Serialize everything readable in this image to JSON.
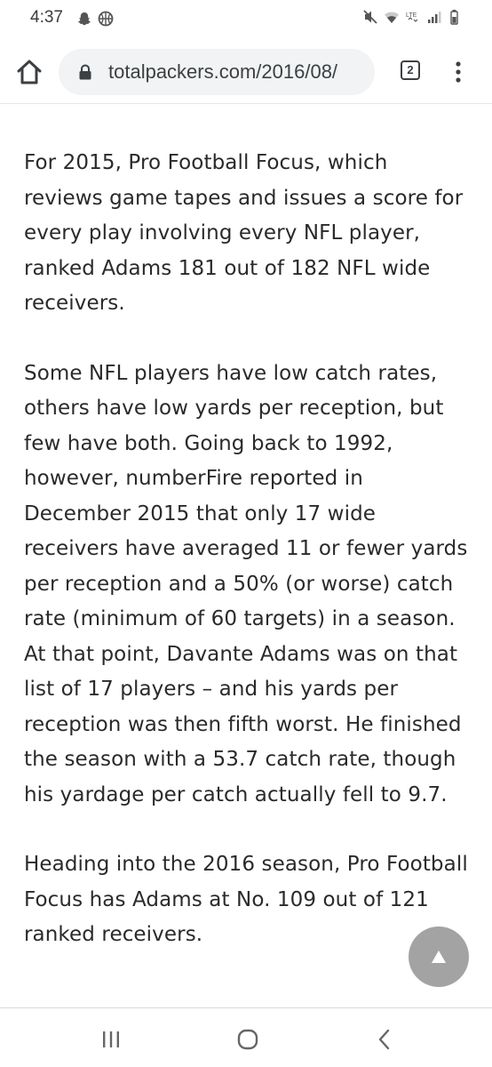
{
  "status_bar": {
    "time": "4:37",
    "left_icons": [
      "snapchat-icon",
      "basketball-icon"
    ],
    "right_icons": [
      "mute-icon",
      "wifi-icon",
      "lte-icon",
      "signal-icon",
      "battery-icon"
    ]
  },
  "browser": {
    "url": "totalpackers.com/2016/08/",
    "tab_count": "2"
  },
  "article": {
    "paragraphs": [
      "For 2015, Pro Football Focus, which reviews game tapes and issues a score for every play involving every NFL player, ranked Adams 181 out of 182 NFL wide receivers.",
      "Some NFL players have low catch rates, others have low yards per reception, but few have both. Going back to 1992, however, numberFire reported in December 2015 that only 17 wide receivers have averaged 11 or fewer yards per reception and a 50% (or worse) catch rate (minimum of 60 targets) in a season. At that point, Davante Adams was on that list of 17 players – and his yards per reception was then fifth worst. He finished the season with a 53.7 catch rate, though his yardage per catch actually fell to 9.7.",
      "Heading into the 2016 season, Pro Football Focus has Adams at No. 109 out of 121 ranked receivers."
    ]
  },
  "nav_bar": {
    "buttons": [
      "recents-icon",
      "home-circle-icon",
      "back-icon"
    ]
  }
}
